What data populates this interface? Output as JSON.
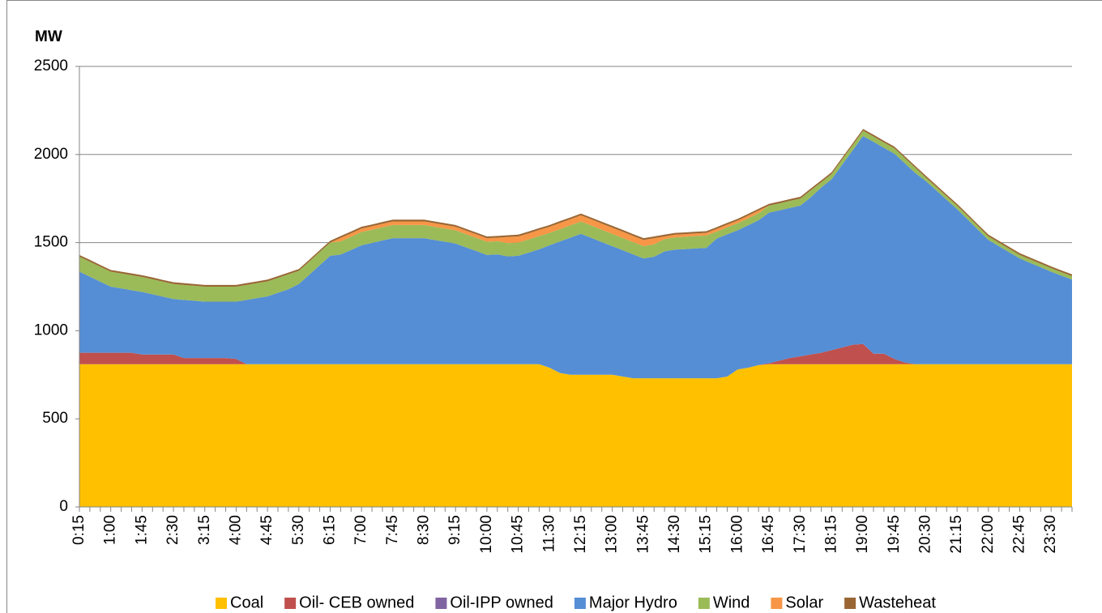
{
  "chart_data": {
    "type": "stacked_area",
    "y_label": "MW",
    "categories": [
      "0:15",
      null,
      null,
      "1:00",
      null,
      null,
      "1:45",
      null,
      null,
      "2:30",
      null,
      null,
      "3:15",
      null,
      null,
      "4:00",
      null,
      null,
      "4:45",
      null,
      null,
      "5:30",
      null,
      null,
      "6:15",
      null,
      null,
      "7:00",
      null,
      null,
      "7:45",
      null,
      null,
      "8:30",
      null,
      null,
      "9:15",
      null,
      null,
      "10:00",
      null,
      null,
      "10:45",
      null,
      null,
      "11:30",
      null,
      null,
      "12:15",
      null,
      null,
      "13:00",
      null,
      null,
      "13:45",
      null,
      null,
      "14:30",
      null,
      null,
      "15:15",
      null,
      null,
      "16:00",
      null,
      null,
      "16:45",
      null,
      null,
      "17:30",
      null,
      null,
      "18:15",
      null,
      null,
      "19:00",
      null,
      null,
      "19:45",
      null,
      null,
      "20:30",
      null,
      null,
      "21:15",
      null,
      null,
      "22:00",
      null,
      null,
      "22:45",
      null,
      null,
      "23:30",
      null,
      null
    ],
    "series": [
      {
        "name": "Coal",
        "color": "#FFC000",
        "values": [
          810,
          810,
          810,
          810,
          810,
          810,
          810,
          810,
          810,
          810,
          810,
          810,
          810,
          810,
          810,
          810,
          810,
          810,
          810,
          810,
          810,
          810,
          810,
          810,
          810,
          810,
          810,
          810,
          810,
          810,
          810,
          810,
          810,
          810,
          810,
          810,
          810,
          810,
          810,
          810,
          810,
          810,
          810,
          810,
          810,
          790,
          760,
          750,
          750,
          750,
          750,
          750,
          740,
          730,
          730,
          730,
          730,
          730,
          730,
          730,
          730,
          730,
          740,
          780,
          790,
          805,
          810,
          810,
          810,
          810,
          810,
          810,
          810,
          810,
          810,
          810,
          810,
          810,
          810,
          810,
          810,
          810,
          810,
          810,
          810,
          810,
          810,
          810,
          810,
          810,
          810,
          810,
          810,
          810,
          810,
          810
        ]
      },
      {
        "name": "Oil- CEB owned",
        "color": "#C0504D",
        "values": [
          65,
          65,
          65,
          65,
          65,
          65,
          55,
          55,
          55,
          55,
          35,
          35,
          35,
          35,
          35,
          30,
          0,
          0,
          0,
          0,
          0,
          0,
          0,
          0,
          0,
          0,
          0,
          0,
          0,
          0,
          0,
          0,
          0,
          0,
          0,
          0,
          0,
          0,
          0,
          0,
          0,
          0,
          0,
          0,
          0,
          0,
          0,
          0,
          0,
          0,
          0,
          0,
          0,
          0,
          0,
          0,
          0,
          0,
          0,
          0,
          0,
          0,
          0,
          0,
          0,
          0,
          5,
          20,
          35,
          45,
          55,
          65,
          80,
          95,
          110,
          115,
          60,
          60,
          30,
          10,
          0,
          0,
          0,
          0,
          0,
          0,
          0,
          0,
          0,
          0,
          0,
          0,
          0,
          0,
          0,
          0
        ]
      },
      {
        "name": "Oil-IPP owned",
        "color": "#8064A2",
        "values": [
          0,
          0,
          0,
          0,
          0,
          0,
          0,
          0,
          0,
          0,
          0,
          0,
          0,
          0,
          0,
          0,
          0,
          0,
          0,
          0,
          0,
          0,
          0,
          0,
          0,
          0,
          0,
          0,
          0,
          0,
          0,
          0,
          0,
          0,
          0,
          0,
          0,
          0,
          0,
          0,
          0,
          0,
          0,
          0,
          0,
          0,
          0,
          0,
          0,
          0,
          0,
          0,
          0,
          0,
          0,
          0,
          0,
          0,
          0,
          0,
          0,
          0,
          0,
          0,
          0,
          0,
          0,
          0,
          0,
          0,
          0,
          0,
          0,
          0,
          0,
          0,
          0,
          0,
          0,
          0,
          0,
          0,
          0,
          0,
          0,
          0,
          0,
          0,
          0,
          0,
          0,
          0,
          0,
          0,
          0,
          0
        ]
      },
      {
        "name": "Major Hydro",
        "color": "#558ED5",
        "values": [
          460,
          432,
          403,
          375,
          365,
          355,
          355,
          342,
          328,
          315,
          330,
          325,
          320,
          320,
          320,
          325,
          365,
          375,
          385,
          405,
          425,
          455,
          508,
          562,
          615,
          622,
          648,
          675,
          688,
          702,
          715,
          715,
          715,
          715,
          705,
          695,
          685,
          663,
          642,
          620,
          623,
          612,
          615,
          633,
          652,
          695,
          747,
          778,
          800,
          777,
          753,
          730,
          717,
          703,
          680,
          690,
          720,
          730,
          733,
          737,
          740,
          793,
          807,
          790,
          808,
          822,
          855,
          853,
          852,
          855,
          892,
          938,
          970,
          1037,
          1103,
          1180,
          1202,
          1168,
          1165,
          1130,
          1085,
          1040,
          987,
          933,
          880,
          822,
          763,
          705,
          670,
          635,
          600,
          575,
          550,
          525,
          502,
          480
        ]
      },
      {
        "name": "Wind",
        "color": "#9BBB59",
        "values": [
          85,
          85,
          85,
          85,
          85,
          85,
          85,
          85,
          85,
          85,
          85,
          85,
          85,
          85,
          85,
          85,
          85,
          85,
          85,
          85,
          85,
          75,
          75,
          75,
          75,
          75,
          75,
          75,
          75,
          75,
          75,
          75,
          75,
          75,
          75,
          75,
          75,
          75,
          75,
          75,
          75,
          75,
          75,
          75,
          75,
          70,
          70,
          70,
          70,
          70,
          70,
          70,
          70,
          70,
          70,
          70,
          70,
          70,
          70,
          70,
          70,
          40,
          40,
          40,
          40,
          40,
          40,
          40,
          40,
          40,
          40,
          30,
          30,
          30,
          30,
          30,
          30,
          30,
          30,
          30,
          30,
          20,
          20,
          20,
          20,
          20,
          20,
          20,
          20,
          20,
          20,
          20,
          20,
          20,
          20,
          20
        ]
      },
      {
        "name": "Solar",
        "color": "#F79646",
        "values": [
          0,
          0,
          0,
          0,
          0,
          0,
          0,
          0,
          0,
          0,
          0,
          0,
          0,
          0,
          0,
          0,
          0,
          0,
          0,
          0,
          0,
          0,
          0,
          0,
          0,
          20,
          20,
          20,
          20,
          20,
          20,
          20,
          20,
          20,
          20,
          20,
          20,
          20,
          20,
          20,
          20,
          35,
          35,
          35,
          35,
          35,
          35,
          35,
          35,
          35,
          35,
          35,
          35,
          35,
          35,
          35,
          15,
          15,
          15,
          15,
          15,
          15,
          15,
          15,
          15,
          15,
          0,
          0,
          0,
          0,
          0,
          0,
          0,
          0,
          0,
          0,
          0,
          0,
          0,
          0,
          0,
          0,
          0,
          0,
          0,
          0,
          0,
          0,
          0,
          0,
          0,
          0,
          0,
          0,
          0,
          0
        ]
      },
      {
        "name": "Wasteheat",
        "color": "#996633",
        "values": [
          10,
          10,
          10,
          10,
          10,
          10,
          10,
          10,
          10,
          10,
          10,
          10,
          10,
          10,
          10,
          10,
          10,
          10,
          10,
          10,
          10,
          10,
          10,
          10,
          10,
          10,
          10,
          10,
          10,
          10,
          10,
          10,
          10,
          10,
          10,
          10,
          10,
          10,
          10,
          10,
          10,
          10,
          10,
          10,
          10,
          10,
          10,
          10,
          10,
          10,
          10,
          10,
          10,
          10,
          10,
          10,
          10,
          10,
          10,
          10,
          10,
          10,
          10,
          10,
          10,
          10,
          10,
          10,
          10,
          10,
          10,
          10,
          10,
          10,
          10,
          10,
          10,
          10,
          10,
          10,
          10,
          10,
          10,
          10,
          10,
          10,
          10,
          10,
          10,
          10,
          10,
          10,
          10,
          10,
          10,
          10
        ]
      }
    ],
    "ylim": [
      0,
      2500
    ],
    "yticks": [
      0,
      500,
      1000,
      1500,
      2000,
      2500
    ],
    "grid": true,
    "legend": "bottom"
  }
}
